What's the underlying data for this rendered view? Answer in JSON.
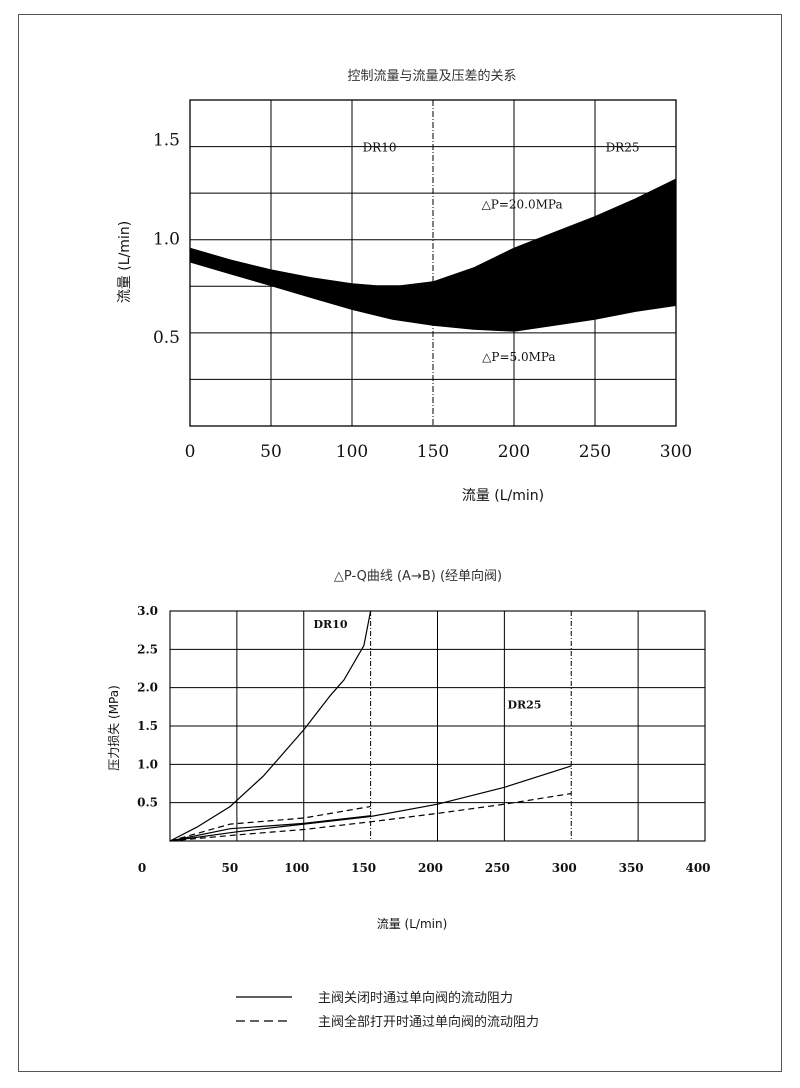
{
  "chart_data": [
    {
      "type": "area",
      "title": "控制流量与流量及压差的关系",
      "xlabel": "流量 (L/min)",
      "ylabel": "流量 (L/min)",
      "xlim": [
        0,
        300
      ],
      "ylim": [
        0.05,
        1.7
      ],
      "xticks": [
        0,
        50,
        100,
        150,
        200,
        250,
        300
      ],
      "xtick_labels": [
        "0",
        "50",
        "100",
        "150",
        "200",
        "250",
        "300"
      ],
      "yticks": [
        0.5,
        1.0,
        1.5
      ],
      "ytick_labels": [
        "0.5",
        "1.0",
        "1.5"
      ],
      "grid": true,
      "divider_x": 150,
      "regions": [
        "DR10",
        "DR25"
      ],
      "series": [
        {
          "name": "△P=20.0MPa",
          "x": [
            0,
            25,
            50,
            75,
            100,
            115,
            130,
            150,
            175,
            200,
            225,
            250,
            275,
            300
          ],
          "values": [
            0.95,
            0.89,
            0.84,
            0.8,
            0.77,
            0.76,
            0.76,
            0.78,
            0.85,
            0.95,
            1.03,
            1.11,
            1.2,
            1.3
          ]
        },
        {
          "name": "△P=5.0MPa",
          "x": [
            0,
            25,
            50,
            75,
            100,
            125,
            150,
            175,
            200,
            225,
            250,
            275,
            300
          ],
          "values": [
            0.88,
            0.82,
            0.76,
            0.7,
            0.64,
            0.59,
            0.56,
            0.54,
            0.53,
            0.56,
            0.59,
            0.63,
            0.66
          ]
        }
      ],
      "annotations": [
        {
          "text": "DR10",
          "x": 117,
          "y": 1.44
        },
        {
          "text": "DR25",
          "x": 267,
          "y": 1.44
        },
        {
          "text": "△P=20.0MPa",
          "x": 205,
          "y": 1.15
        },
        {
          "text": "△P=5.0MPa",
          "x": 203,
          "y": 0.38
        }
      ]
    },
    {
      "type": "line",
      "title": "△P-Q曲线 (A→B) (经单向阀)",
      "xlabel": "流量 (L/min)",
      "ylabel": "压力损失 (MPa)",
      "xlim": [
        0,
        400
      ],
      "ylim": [
        0,
        3.0
      ],
      "xticks": [
        0,
        50,
        100,
        150,
        200,
        250,
        300,
        350,
        400
      ],
      "xtick_labels": [
        "0",
        "50",
        "100",
        "150",
        "200",
        "250",
        "300",
        "350",
        "400"
      ],
      "yticks": [
        0.5,
        1.0,
        1.5,
        2.0,
        2.5,
        3.0
      ],
      "ytick_labels": [
        "0.5",
        "1.0",
        "1.5",
        "2.0",
        "2.5",
        "3.0"
      ],
      "grid": true,
      "dividers_x": [
        150,
        300
      ],
      "series": [
        {
          "name": "DR10",
          "style": "solid",
          "x": [
            0,
            20,
            45,
            70,
            100,
            120,
            130,
            145,
            150
          ],
          "values": [
            0,
            0.18,
            0.45,
            0.85,
            1.45,
            1.9,
            2.1,
            2.55,
            3.0
          ]
        },
        {
          "name": "DR10",
          "style": "dashed",
          "x": [
            0,
            45,
            100,
            150
          ],
          "values": [
            0,
            0.22,
            0.3,
            0.45
          ]
        },
        {
          "name": "DR10",
          "style": "solid",
          "x": [
            0,
            45,
            100,
            150
          ],
          "values": [
            0,
            0.16,
            0.23,
            0.33
          ]
        },
        {
          "name": "DR25",
          "style": "solid",
          "x": [
            0,
            50,
            100,
            150,
            200,
            250,
            300
          ],
          "values": [
            0,
            0.12,
            0.22,
            0.32,
            0.48,
            0.7,
            0.98
          ]
        },
        {
          "name": "DR25",
          "style": "dashed",
          "x": [
            0,
            50,
            100,
            150,
            200,
            250,
            300
          ],
          "values": [
            0,
            0.08,
            0.15,
            0.25,
            0.36,
            0.48,
            0.62
          ]
        }
      ],
      "annotations": [
        {
          "text": "DR10",
          "x": 120,
          "y": 2.78
        },
        {
          "text": "DR25",
          "x": 265,
          "y": 1.73
        }
      ]
    }
  ],
  "legend": [
    {
      "style": "solid",
      "label": "主阀关闭时通过单向阀的流动阻力"
    },
    {
      "style": "dashed",
      "label": "主阀全部打开时通过单向阀的流动阻力"
    }
  ]
}
